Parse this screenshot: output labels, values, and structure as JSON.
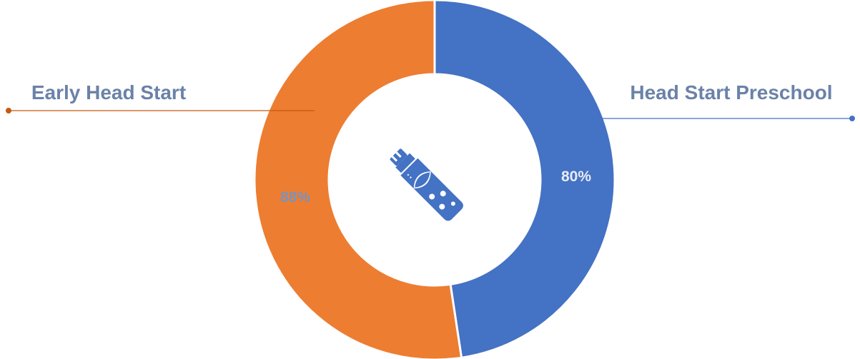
{
  "chart_data": {
    "type": "pie",
    "variant": "donut",
    "categories": [
      "Head Start Preschool",
      "Early Head Start"
    ],
    "values": [
      80,
      88
    ],
    "value_labels": [
      "80%",
      "88%"
    ],
    "colors": [
      "#4472C4",
      "#ED7D31"
    ],
    "label_colors": [
      "#4472C4",
      "#C55A11"
    ],
    "legend": "callout leader lines",
    "title": ""
  },
  "center_icon": "usb-drive-icon",
  "colors": {
    "label_text": "#6B82A8",
    "value_label_on_blue": "#E7ECF6",
    "value_label_on_orange": "#7A93BC",
    "background": "#FFFFFF"
  }
}
